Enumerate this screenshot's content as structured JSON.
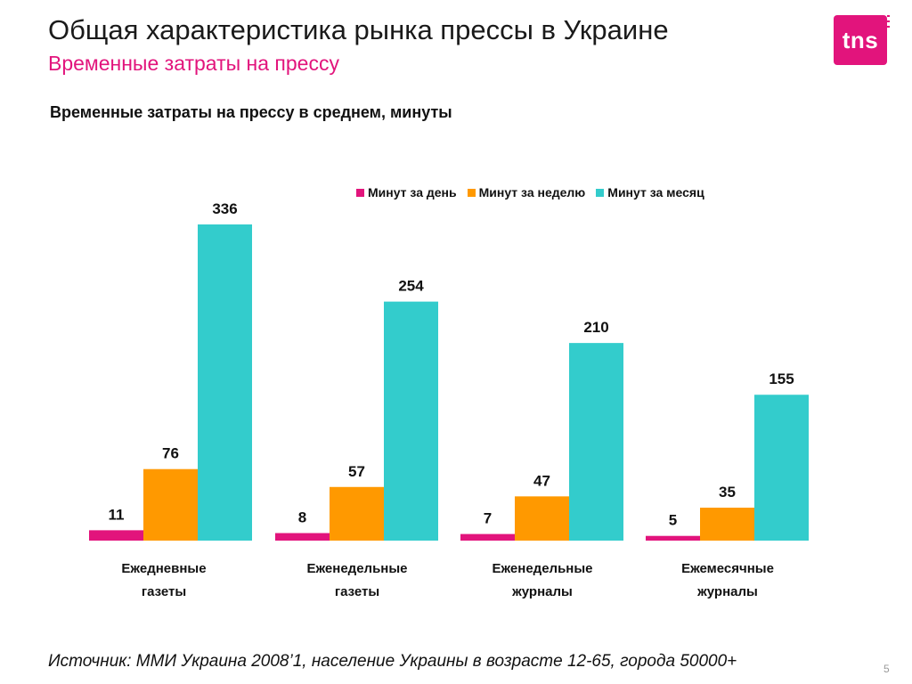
{
  "header": {
    "title": "Общая характеристика рынка прессы в Украине",
    "subtitle": "Временные затраты на прессу",
    "subtitle_color": "#e2147c"
  },
  "logo": {
    "text": "tns",
    "color": "#e2147c"
  },
  "footer": {
    "source": "Источник: ММИ Украина 2008’1, население Украины в возрасте 12-65, города 50000+",
    "page_number": "5"
  },
  "chart_data": {
    "type": "bar",
    "title": "Временные затраты на прессу в среднем, минуты",
    "xlabel": "",
    "ylabel": "",
    "ylim": [
      0,
      336
    ],
    "grid": false,
    "legend_position": "top-right",
    "categories": [
      [
        "Ежедневные",
        "газеты"
      ],
      [
        "Еженедельные",
        "газеты"
      ],
      [
        "Еженедельные",
        "журналы"
      ],
      [
        "Ежемесячные",
        "журналы"
      ]
    ],
    "series": [
      {
        "name": "Минут за день",
        "color": "#e2147c",
        "values": [
          11,
          8,
          7,
          5
        ]
      },
      {
        "name": "Минут за неделю",
        "color": "#ff9900",
        "values": [
          76,
          57,
          47,
          35
        ]
      },
      {
        "name": "Минут за месяц",
        "color": "#33cccc",
        "values": [
          336,
          254,
          210,
          155
        ]
      }
    ]
  }
}
